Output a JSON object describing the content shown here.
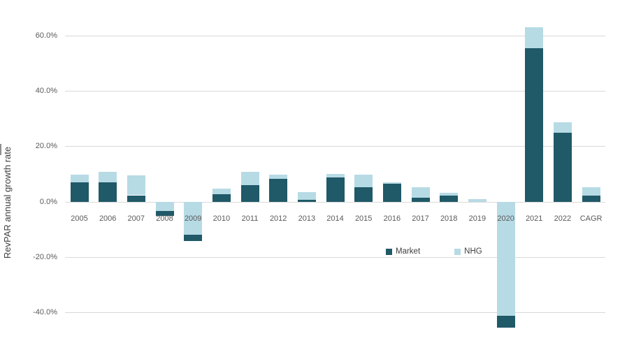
{
  "chart_data": {
    "type": "bar",
    "stacked": true,
    "title": "",
    "xlabel": "",
    "ylabel": "RevPAR annual growth rate",
    "ylim": [
      -50,
      70
    ],
    "grid": "horizontal",
    "legend_position": "bottom-center",
    "stacking_note": "positive bars: Market segment adjacent to zero with NHG stacked above; negative bars: NHG segment adjacent to zero with Market at the tip",
    "categories": [
      "2005",
      "2006",
      "2007",
      "2008",
      "2009",
      "2010",
      "2011",
      "2012",
      "2013",
      "2014",
      "2015",
      "2016",
      "2017",
      "2018",
      "2019",
      "2020",
      "2021",
      "2022",
      "CAGR"
    ],
    "series": [
      {
        "name": "Market",
        "color": "#205968",
        "values": [
          7.0,
          7.0,
          2.3,
          -1.7,
          -2.1,
          2.8,
          6.0,
          8.3,
          0.6,
          8.8,
          5.3,
          6.5,
          1.5,
          2.1,
          0.0,
          -4.4,
          55.3,
          24.9,
          2.3
        ]
      },
      {
        "name": "NHG",
        "color": "#b7dbe5",
        "values": [
          2.8,
          3.8,
          7.3,
          -3.4,
          -12.0,
          1.9,
          4.8,
          1.4,
          2.8,
          1.2,
          4.5,
          0.5,
          3.8,
          1.1,
          1.0,
          -41.1,
          7.6,
          3.8,
          2.9
        ]
      }
    ],
    "bar_totals": [
      9.8,
      10.8,
      9.6,
      -5.1,
      -14.1,
      4.7,
      10.8,
      9.7,
      3.4,
      10.0,
      9.8,
      7.0,
      5.3,
      3.2,
      1.0,
      -45.5,
      62.9,
      28.7,
      5.2
    ],
    "y_ticks": [
      {
        "label": "60.0%",
        "value": 60
      },
      {
        "label": "40.0%",
        "value": 40
      },
      {
        "label": "20.0%",
        "value": 20
      },
      {
        "label": "0.0%",
        "value": 0
      },
      {
        "label": "-20.0%",
        "value": -20
      },
      {
        "label": "-40.0%",
        "value": -40
      }
    ]
  },
  "colors": {
    "market": "#205968",
    "nhg": "#b7dbe5",
    "gridline": "#d9d9d9",
    "tick_text": "#595959",
    "axis_title_text": "#404040",
    "background": "#ffffff"
  }
}
